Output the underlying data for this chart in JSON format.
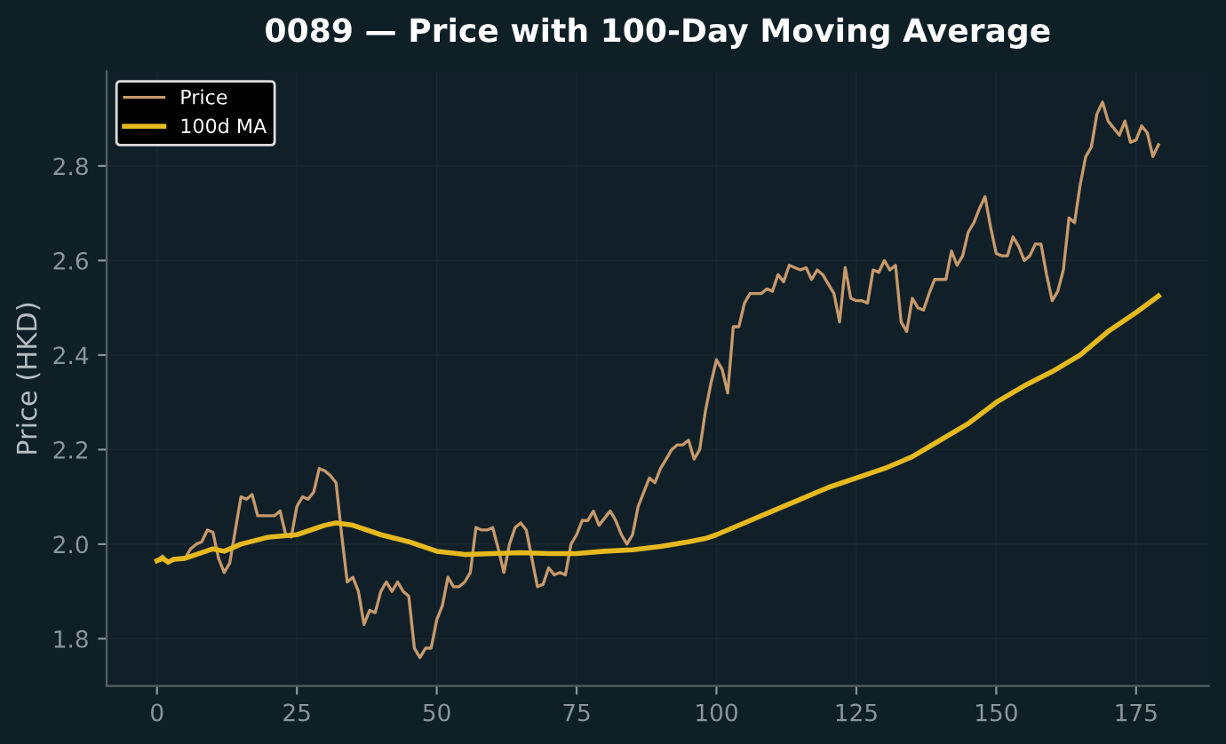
{
  "chart_data": {
    "type": "line",
    "title": "0089 — Price with 100-Day Moving Average",
    "ylabel": "Price (HKD)",
    "xlim": [
      -9,
      188
    ],
    "xticks": [
      0,
      25,
      50,
      75,
      100,
      125,
      150,
      175
    ],
    "ylim": [
      1.7,
      3.0
    ],
    "yticks": [
      {
        "value": 1.8,
        "label": "1.8"
      },
      {
        "value": 2.0,
        "label": "2.0"
      },
      {
        "value": 2.2,
        "label": "2.2"
      },
      {
        "value": 2.4,
        "label": "2.4"
      },
      {
        "value": 2.6,
        "label": "2.6"
      },
      {
        "value": 2.8,
        "label": "2.8"
      }
    ],
    "grid": true,
    "legend": "top left",
    "marker": "none",
    "line_style": "solid",
    "series": [
      {
        "name": "Price",
        "color": "#c8996a",
        "x": [
          0,
          1,
          2,
          3,
          5,
          6,
          7,
          8,
          9,
          10,
          11,
          12,
          13,
          14,
          15,
          16,
          17,
          18,
          19,
          21,
          22,
          23,
          24,
          25,
          26,
          27,
          28,
          29,
          30,
          31,
          32,
          33,
          34,
          35,
          36,
          37,
          38,
          39,
          40,
          41,
          42,
          43,
          44,
          45,
          46,
          47,
          48,
          49,
          50,
          51,
          52,
          53,
          54,
          55,
          56,
          57,
          58,
          59,
          60,
          61,
          62,
          63,
          64,
          65,
          66,
          67,
          68,
          69,
          70,
          71,
          72,
          73,
          74,
          75,
          76,
          77,
          78,
          79,
          80,
          81,
          82,
          83,
          84,
          85,
          86,
          87,
          88,
          89,
          90,
          91,
          92,
          93,
          94,
          95,
          96,
          97,
          98,
          99,
          100,
          101,
          102,
          103,
          104,
          105,
          106,
          107,
          108,
          109,
          110,
          111,
          112,
          113,
          114,
          115,
          116,
          117,
          118,
          119,
          120,
          121,
          122,
          123,
          124,
          125,
          126,
          127,
          128,
          129,
          130,
          131,
          132,
          133,
          134,
          135,
          136,
          137,
          138,
          139,
          140,
          141,
          142,
          143,
          144,
          145,
          146,
          147,
          148,
          149,
          150,
          151,
          152,
          153,
          154,
          155,
          156,
          157,
          158,
          159,
          160,
          161,
          162,
          163,
          164,
          165,
          166,
          167,
          168,
          169,
          170,
          171,
          172,
          173,
          174,
          175,
          176,
          177,
          178,
          179
        ],
        "values": [
          1.965,
          1.975,
          1.96,
          1.97,
          1.97,
          1.99,
          2.0,
          2.005,
          2.03,
          2.025,
          1.97,
          1.94,
          1.96,
          2.03,
          2.1,
          2.095,
          2.105,
          2.06,
          2.06,
          2.06,
          2.07,
          2.02,
          2.015,
          2.08,
          2.1,
          2.095,
          2.11,
          2.16,
          2.155,
          2.145,
          2.13,
          2.02,
          1.92,
          1.93,
          1.9,
          1.83,
          1.86,
          1.855,
          1.9,
          1.92,
          1.9,
          1.92,
          1.9,
          1.89,
          1.78,
          1.76,
          1.78,
          1.78,
          1.84,
          1.87,
          1.93,
          1.91,
          1.91,
          1.92,
          1.94,
          2.035,
          2.03,
          2.03,
          2.035,
          1.99,
          1.94,
          2.0,
          2.035,
          2.045,
          2.03,
          1.97,
          1.91,
          1.915,
          1.95,
          1.935,
          1.94,
          1.935,
          2.0,
          2.02,
          2.05,
          2.05,
          2.07,
          2.04,
          2.055,
          2.07,
          2.05,
          2.02,
          2.0,
          2.02,
          2.08,
          2.11,
          2.14,
          2.13,
          2.16,
          2.18,
          2.2,
          2.21,
          2.21,
          2.22,
          2.18,
          2.2,
          2.28,
          2.34,
          2.39,
          2.37,
          2.32,
          2.46,
          2.46,
          2.51,
          2.53,
          2.53,
          2.53,
          2.54,
          2.535,
          2.57,
          2.555,
          2.59,
          2.585,
          2.58,
          2.585,
          2.56,
          2.58,
          2.57,
          2.55,
          2.53,
          2.47,
          2.585,
          2.52,
          2.515,
          2.515,
          2.51,
          2.58,
          2.575,
          2.6,
          2.58,
          2.59,
          2.47,
          2.45,
          2.52,
          2.5,
          2.495,
          2.53,
          2.56,
          2.56,
          2.56,
          2.62,
          2.59,
          2.61,
          2.66,
          2.68,
          2.71,
          2.735,
          2.67,
          2.615,
          2.61,
          2.61,
          2.65,
          2.63,
          2.6,
          2.61,
          2.635,
          2.635,
          2.57,
          2.515,
          2.535,
          2.58,
          2.69,
          2.68,
          2.76,
          2.82,
          2.84,
          2.91,
          2.935,
          2.895,
          2.88,
          2.865,
          2.895,
          2.85,
          2.855,
          2.885,
          2.87,
          2.82,
          2.845
        ]
      },
      {
        "name": "100d MA",
        "color": "#e6b91e",
        "x": [
          0,
          1,
          2,
          3,
          5,
          10,
          12,
          15,
          20,
          25,
          30,
          32,
          35,
          40,
          45,
          50,
          55,
          60,
          65,
          70,
          75,
          80,
          85,
          90,
          95,
          98,
          100,
          105,
          110,
          115,
          120,
          125,
          130,
          135,
          140,
          145,
          150,
          155,
          160,
          165,
          170,
          175,
          179
        ],
        "values": [
          1.965,
          1.97,
          1.962,
          1.968,
          1.97,
          1.99,
          1.985,
          2.0,
          2.015,
          2.02,
          2.04,
          2.045,
          2.04,
          2.02,
          2.005,
          1.985,
          1.978,
          1.98,
          1.982,
          1.98,
          1.98,
          1.985,
          1.988,
          1.995,
          2.005,
          2.012,
          2.02,
          2.045,
          2.07,
          2.095,
          2.12,
          2.14,
          2.16,
          2.185,
          2.22,
          2.255,
          2.3,
          2.335,
          2.365,
          2.4,
          2.45,
          2.49,
          2.525
        ]
      }
    ]
  }
}
